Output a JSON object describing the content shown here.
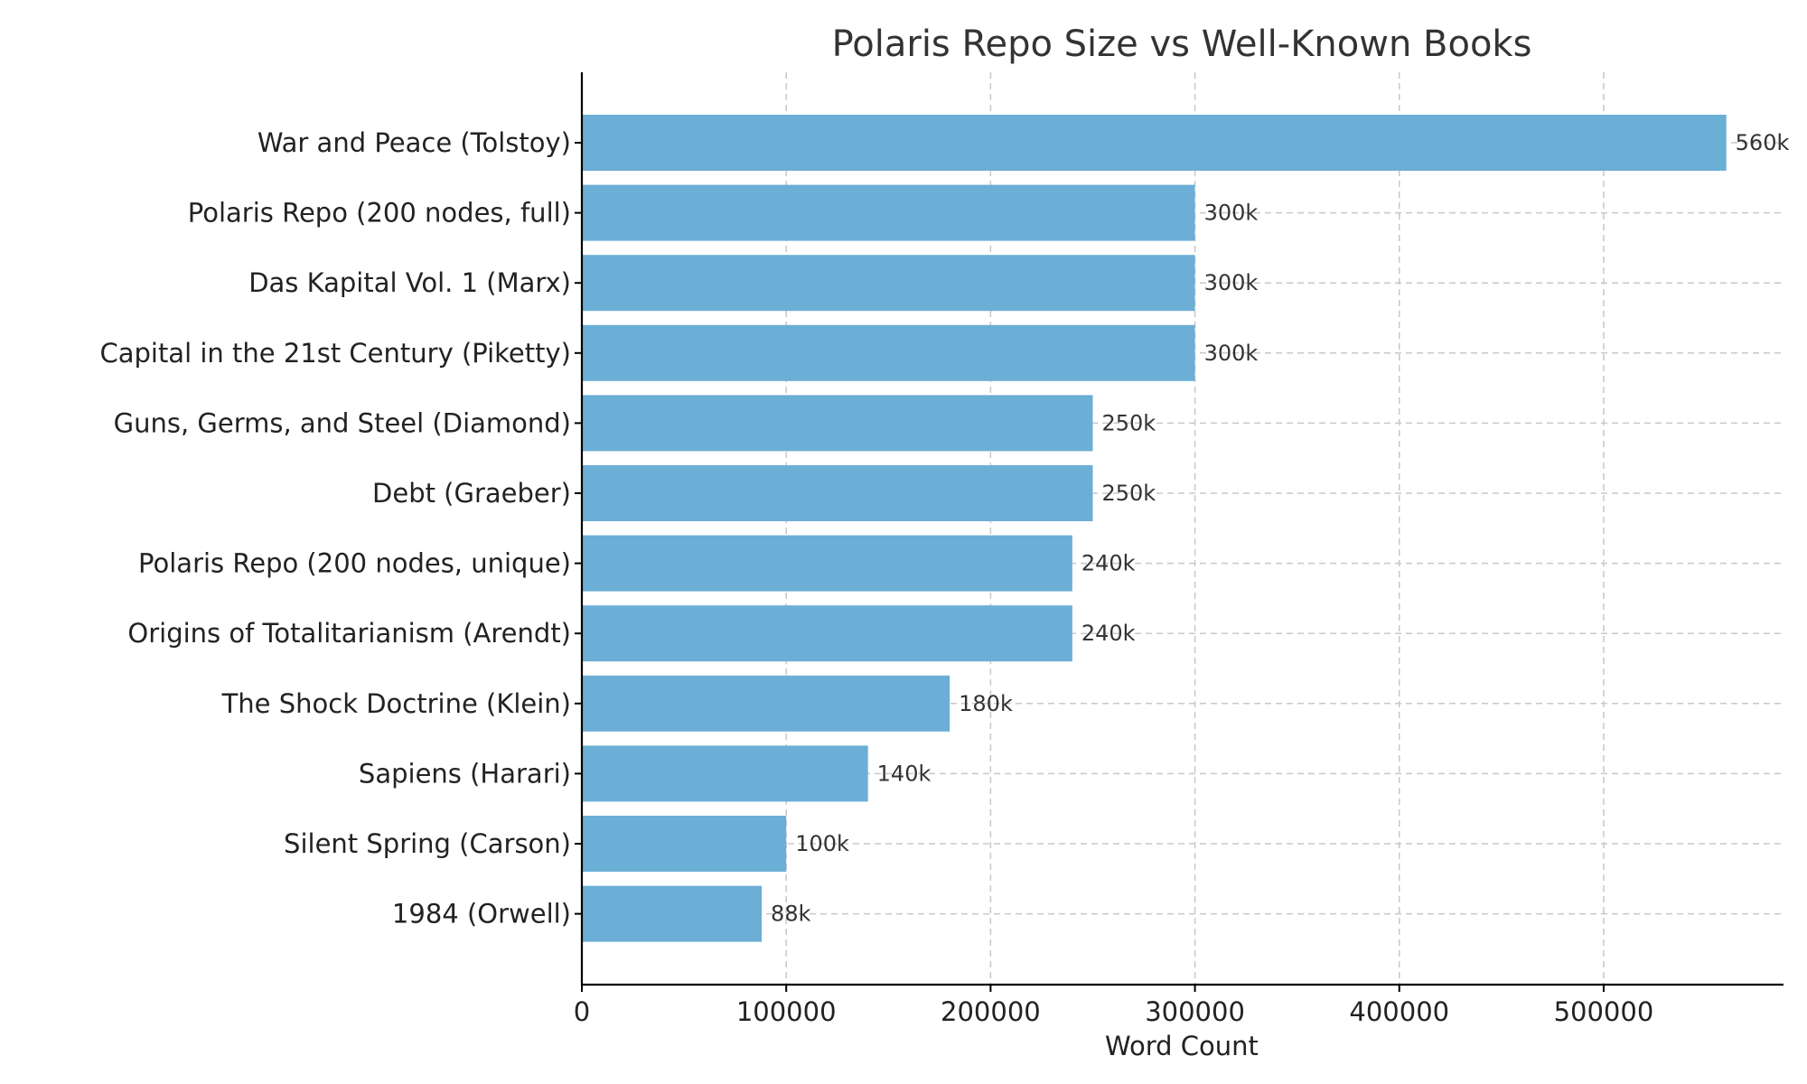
{
  "chart_data": {
    "type": "bar",
    "orientation": "horizontal",
    "title": "Polaris Repo Size vs Well-Known Books",
    "xlabel": "Word Count",
    "ylabel": "",
    "xlim": [
      0,
      588000
    ],
    "xticks": [
      0,
      100000,
      200000,
      300000,
      400000,
      500000
    ],
    "xtick_labels": [
      "0",
      "100000",
      "200000",
      "300000",
      "400000",
      "500000"
    ],
    "grid": true,
    "bar_color": "#6baed6",
    "categories": [
      "War and Peace (Tolstoy)",
      "Polaris Repo (200 nodes, full)",
      "Das Kapital Vol. 1 (Marx)",
      "Capital in the 21st Century (Piketty)",
      "Guns, Germs, and Steel (Diamond)",
      "Debt (Graeber)",
      "Polaris Repo (200 nodes, unique)",
      "Origins of Totalitarianism (Arendt)",
      "The Shock Doctrine (Klein)",
      "Sapiens (Harari)",
      "Silent Spring (Carson)",
      "1984 (Orwell)"
    ],
    "values": [
      560000,
      300000,
      300000,
      300000,
      250000,
      250000,
      240000,
      240000,
      180000,
      140000,
      100000,
      88000
    ],
    "data_labels": [
      "560k",
      "300k",
      "300k",
      "300k",
      "250k",
      "250k",
      "240k",
      "240k",
      "180k",
      "140k",
      "100k",
      "88k"
    ]
  }
}
